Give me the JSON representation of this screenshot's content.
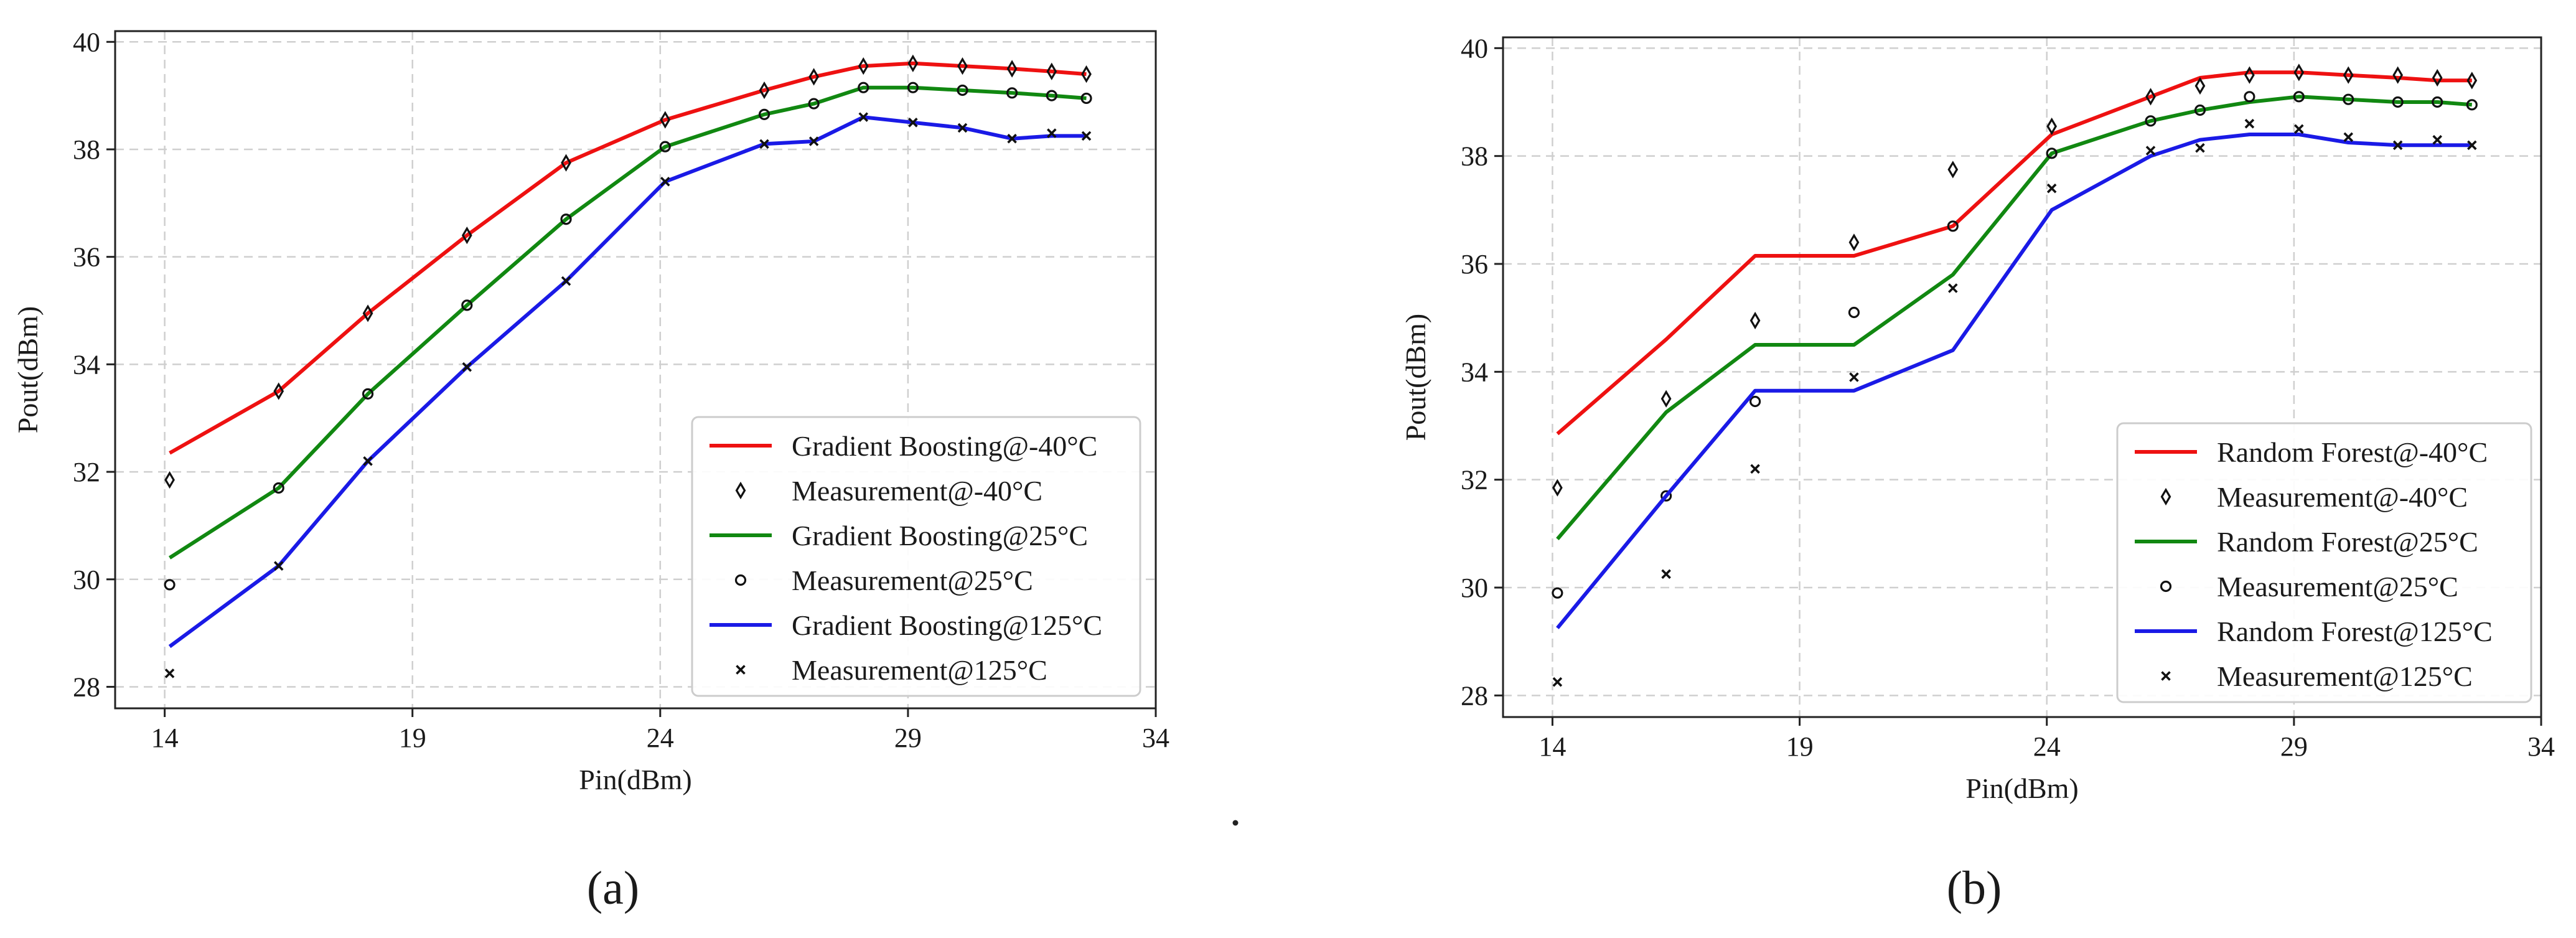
{
  "panel_labels": [
    "(a)",
    "(b)"
  ],
  "colors": {
    "red": "#ee1111",
    "green": "#118811",
    "blue": "#1a1ae6",
    "marker": "#111111",
    "grid": "#cfcfcf"
  },
  "chart_data": [
    {
      "type": "line",
      "xlabel": "Pin(dBm)",
      "ylabel": "Pout(dBm)",
      "xlim": [
        13,
        34
      ],
      "ylim": [
        27.6,
        40.2
      ],
      "xticks": [
        14,
        19,
        24,
        29,
        34
      ],
      "yticks": [
        28,
        30,
        32,
        34,
        36,
        38,
        40
      ],
      "grid": true,
      "legend_position": "lower-right",
      "x": [
        14.1,
        16.3,
        18.1,
        20.1,
        22.1,
        24.1,
        26.1,
        27.1,
        28.1,
        29.1,
        30.1,
        31.1,
        31.9,
        32.6
      ],
      "series": [
        {
          "name": "Gradient Boosting@-40°C",
          "kind": "line",
          "color": "red",
          "values": [
            32.35,
            33.5,
            34.95,
            36.4,
            37.75,
            38.55,
            39.1,
            39.35,
            39.55,
            39.6,
            39.55,
            39.5,
            39.45,
            39.4
          ]
        },
        {
          "name": "Measurement@-40°C",
          "kind": "marker",
          "marker": "diamond",
          "values": [
            31.85,
            33.5,
            34.95,
            36.4,
            37.75,
            38.55,
            39.1,
            39.35,
            39.55,
            39.6,
            39.55,
            39.5,
            39.45,
            39.4
          ]
        },
        {
          "name": "Gradient Boosting@25°C",
          "kind": "line",
          "color": "green",
          "values": [
            30.4,
            31.7,
            33.45,
            35.1,
            36.7,
            38.05,
            38.65,
            38.85,
            39.15,
            39.15,
            39.1,
            39.05,
            39.0,
            38.95
          ]
        },
        {
          "name": "Measurement@25°C",
          "kind": "marker",
          "marker": "circle",
          "values": [
            29.9,
            31.7,
            33.45,
            35.1,
            36.7,
            38.05,
            38.65,
            38.85,
            39.15,
            39.15,
            39.1,
            39.05,
            39.0,
            38.95
          ]
        },
        {
          "name": "Gradient Boosting@125°C",
          "kind": "line",
          "color": "blue",
          "values": [
            28.75,
            30.25,
            32.2,
            33.95,
            35.55,
            37.4,
            38.1,
            38.15,
            38.6,
            38.5,
            38.4,
            38.2,
            38.25,
            38.25
          ]
        },
        {
          "name": "Measurement@125°C",
          "kind": "marker",
          "marker": "x",
          "values": [
            28.25,
            30.25,
            32.2,
            33.95,
            35.55,
            37.4,
            38.1,
            38.15,
            38.6,
            38.5,
            38.4,
            38.2,
            38.3,
            38.25
          ]
        }
      ]
    },
    {
      "type": "line",
      "xlabel": "Pin(dBm)",
      "ylabel": "Pout(dBm)",
      "xlim": [
        13,
        34
      ],
      "ylim": [
        27.6,
        40.2
      ],
      "xticks": [
        14,
        19,
        24,
        29,
        34
      ],
      "yticks": [
        28,
        30,
        32,
        34,
        36,
        38,
        40
      ],
      "grid": true,
      "legend_position": "lower-right",
      "x": [
        14.1,
        16.3,
        18.1,
        20.1,
        22.1,
        24.1,
        26.1,
        27.1,
        28.1,
        29.1,
        30.1,
        31.1,
        31.9,
        32.6
      ],
      "series": [
        {
          "name": "Random Forest@-40°C",
          "kind": "line",
          "color": "red",
          "values": [
            32.85,
            34.6,
            36.15,
            36.15,
            36.7,
            38.4,
            39.1,
            39.45,
            39.55,
            39.55,
            39.5,
            39.45,
            39.4,
            39.4
          ]
        },
        {
          "name": "Measurement@-40°C",
          "kind": "marker",
          "marker": "diamond",
          "values": [
            31.85,
            33.5,
            34.95,
            36.4,
            37.75,
            38.55,
            39.1,
            39.3,
            39.5,
            39.55,
            39.5,
            39.5,
            39.45,
            39.4
          ]
        },
        {
          "name": "Random Forest@25°C",
          "kind": "line",
          "color": "green",
          "values": [
            30.9,
            33.25,
            34.5,
            34.5,
            35.8,
            38.05,
            38.65,
            38.85,
            39.0,
            39.1,
            39.05,
            39.0,
            39.0,
            38.95
          ]
        },
        {
          "name": "Measurement@25°C",
          "kind": "marker",
          "marker": "circle",
          "values": [
            29.9,
            31.7,
            33.45,
            35.1,
            36.7,
            38.05,
            38.65,
            38.85,
            39.1,
            39.1,
            39.05,
            39.0,
            39.0,
            38.95
          ]
        },
        {
          "name": "Random Forest@125°C",
          "kind": "line",
          "color": "blue",
          "values": [
            29.25,
            31.7,
            33.65,
            33.65,
            34.4,
            37.0,
            38.0,
            38.3,
            38.4,
            38.4,
            38.25,
            38.2,
            38.2,
            38.2
          ]
        },
        {
          "name": "Measurement@125°C",
          "kind": "marker",
          "marker": "x",
          "values": [
            28.25,
            30.25,
            32.2,
            33.9,
            35.55,
            37.4,
            38.1,
            38.15,
            38.6,
            38.5,
            38.35,
            38.2,
            38.3,
            38.2
          ]
        }
      ]
    }
  ]
}
